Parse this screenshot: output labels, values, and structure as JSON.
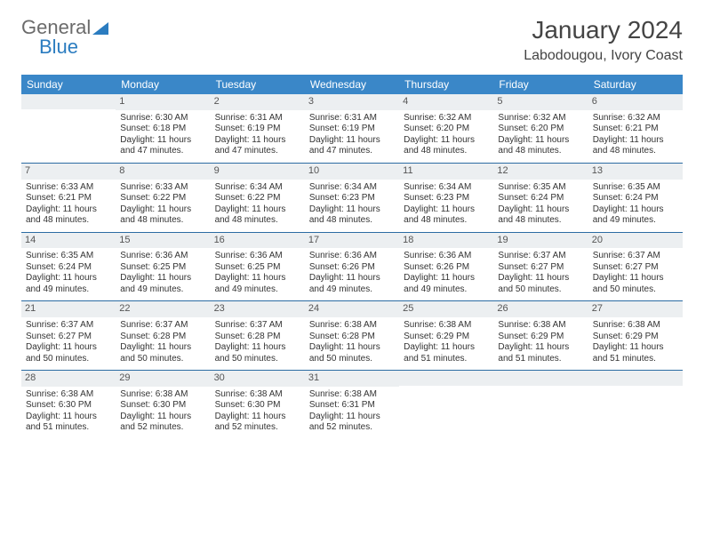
{
  "logo": {
    "text1": "General",
    "text2": "Blue"
  },
  "title": "January 2024",
  "location": "Labodougou, Ivory Coast",
  "weekdays": [
    "Sunday",
    "Monday",
    "Tuesday",
    "Wednesday",
    "Thursday",
    "Friday",
    "Saturday"
  ],
  "colors": {
    "header_bg": "#3a87c8",
    "header_text": "#ffffff",
    "daynum_bg": "#eceff1",
    "week_border": "#2c6ca3",
    "body_text": "#333333"
  },
  "typography": {
    "title_fontsize": 28,
    "location_fontsize": 16,
    "weekday_fontsize": 12,
    "cell_fontsize": 10
  },
  "start_offset": 1,
  "days": [
    {
      "n": 1,
      "sunrise": "6:30 AM",
      "sunset": "6:18 PM",
      "daylight": "11 hours and 47 minutes."
    },
    {
      "n": 2,
      "sunrise": "6:31 AM",
      "sunset": "6:19 PM",
      "daylight": "11 hours and 47 minutes."
    },
    {
      "n": 3,
      "sunrise": "6:31 AM",
      "sunset": "6:19 PM",
      "daylight": "11 hours and 47 minutes."
    },
    {
      "n": 4,
      "sunrise": "6:32 AM",
      "sunset": "6:20 PM",
      "daylight": "11 hours and 48 minutes."
    },
    {
      "n": 5,
      "sunrise": "6:32 AM",
      "sunset": "6:20 PM",
      "daylight": "11 hours and 48 minutes."
    },
    {
      "n": 6,
      "sunrise": "6:32 AM",
      "sunset": "6:21 PM",
      "daylight": "11 hours and 48 minutes."
    },
    {
      "n": 7,
      "sunrise": "6:33 AM",
      "sunset": "6:21 PM",
      "daylight": "11 hours and 48 minutes."
    },
    {
      "n": 8,
      "sunrise": "6:33 AM",
      "sunset": "6:22 PM",
      "daylight": "11 hours and 48 minutes."
    },
    {
      "n": 9,
      "sunrise": "6:34 AM",
      "sunset": "6:22 PM",
      "daylight": "11 hours and 48 minutes."
    },
    {
      "n": 10,
      "sunrise": "6:34 AM",
      "sunset": "6:23 PM",
      "daylight": "11 hours and 48 minutes."
    },
    {
      "n": 11,
      "sunrise": "6:34 AM",
      "sunset": "6:23 PM",
      "daylight": "11 hours and 48 minutes."
    },
    {
      "n": 12,
      "sunrise": "6:35 AM",
      "sunset": "6:24 PM",
      "daylight": "11 hours and 48 minutes."
    },
    {
      "n": 13,
      "sunrise": "6:35 AM",
      "sunset": "6:24 PM",
      "daylight": "11 hours and 49 minutes."
    },
    {
      "n": 14,
      "sunrise": "6:35 AM",
      "sunset": "6:24 PM",
      "daylight": "11 hours and 49 minutes."
    },
    {
      "n": 15,
      "sunrise": "6:36 AM",
      "sunset": "6:25 PM",
      "daylight": "11 hours and 49 minutes."
    },
    {
      "n": 16,
      "sunrise": "6:36 AM",
      "sunset": "6:25 PM",
      "daylight": "11 hours and 49 minutes."
    },
    {
      "n": 17,
      "sunrise": "6:36 AM",
      "sunset": "6:26 PM",
      "daylight": "11 hours and 49 minutes."
    },
    {
      "n": 18,
      "sunrise": "6:36 AM",
      "sunset": "6:26 PM",
      "daylight": "11 hours and 49 minutes."
    },
    {
      "n": 19,
      "sunrise": "6:37 AM",
      "sunset": "6:27 PM",
      "daylight": "11 hours and 50 minutes."
    },
    {
      "n": 20,
      "sunrise": "6:37 AM",
      "sunset": "6:27 PM",
      "daylight": "11 hours and 50 minutes."
    },
    {
      "n": 21,
      "sunrise": "6:37 AM",
      "sunset": "6:27 PM",
      "daylight": "11 hours and 50 minutes."
    },
    {
      "n": 22,
      "sunrise": "6:37 AM",
      "sunset": "6:28 PM",
      "daylight": "11 hours and 50 minutes."
    },
    {
      "n": 23,
      "sunrise": "6:37 AM",
      "sunset": "6:28 PM",
      "daylight": "11 hours and 50 minutes."
    },
    {
      "n": 24,
      "sunrise": "6:38 AM",
      "sunset": "6:28 PM",
      "daylight": "11 hours and 50 minutes."
    },
    {
      "n": 25,
      "sunrise": "6:38 AM",
      "sunset": "6:29 PM",
      "daylight": "11 hours and 51 minutes."
    },
    {
      "n": 26,
      "sunrise": "6:38 AM",
      "sunset": "6:29 PM",
      "daylight": "11 hours and 51 minutes."
    },
    {
      "n": 27,
      "sunrise": "6:38 AM",
      "sunset": "6:29 PM",
      "daylight": "11 hours and 51 minutes."
    },
    {
      "n": 28,
      "sunrise": "6:38 AM",
      "sunset": "6:30 PM",
      "daylight": "11 hours and 51 minutes."
    },
    {
      "n": 29,
      "sunrise": "6:38 AM",
      "sunset": "6:30 PM",
      "daylight": "11 hours and 52 minutes."
    },
    {
      "n": 30,
      "sunrise": "6:38 AM",
      "sunset": "6:30 PM",
      "daylight": "11 hours and 52 minutes."
    },
    {
      "n": 31,
      "sunrise": "6:38 AM",
      "sunset": "6:31 PM",
      "daylight": "11 hours and 52 minutes."
    }
  ],
  "labels": {
    "sunrise": "Sunrise:",
    "sunset": "Sunset:",
    "daylight": "Daylight:"
  }
}
